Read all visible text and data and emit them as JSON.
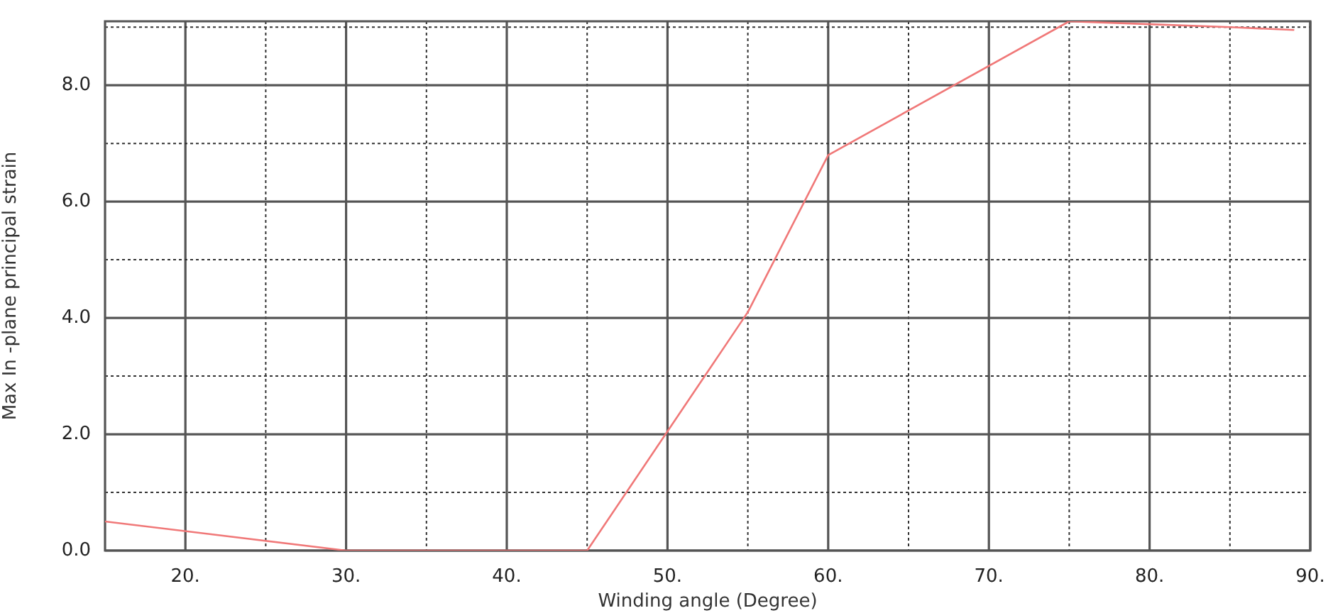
{
  "chart_data": {
    "type": "line",
    "xlabel": "Winding angle (Degree)",
    "ylabel": "Max In -plane principal strain",
    "x": [
      15,
      30,
      45,
      55,
      60,
      75,
      80,
      85,
      89
    ],
    "series": [
      {
        "color": "#f07878",
        "values": [
          0.5,
          0,
          0,
          4.1,
          6.8,
          9.1,
          9.05,
          9.0,
          8.95
        ]
      }
    ],
    "xlim": [
      15,
      90
    ],
    "xticks": [
      {
        "value": 15,
        "label": null
      },
      {
        "value": 20,
        "label": "20."
      },
      {
        "value": 25,
        "label": null
      },
      {
        "value": 30,
        "label": "30."
      },
      {
        "value": 35,
        "label": null
      },
      {
        "value": 40,
        "label": "40."
      },
      {
        "value": 45,
        "label": null
      },
      {
        "value": 50,
        "label": "50."
      },
      {
        "value": 55,
        "label": null
      },
      {
        "value": 60,
        "label": "60."
      },
      {
        "value": 65,
        "label": null
      },
      {
        "value": 70,
        "label": "70."
      },
      {
        "value": 75,
        "label": null
      },
      {
        "value": 80,
        "label": "80."
      },
      {
        "value": 85,
        "label": null
      },
      {
        "value": 90,
        "label": "90."
      }
    ],
    "ylim": [
      0,
      9.1
    ],
    "yticks": [
      {
        "value": 0,
        "label": "0.0"
      },
      {
        "value": 1,
        "label": null
      },
      {
        "value": 2,
        "label": "2.0"
      },
      {
        "value": 3,
        "label": null
      },
      {
        "value": 4,
        "label": "4.0"
      },
      {
        "value": 5,
        "label": null
      },
      {
        "value": 6,
        "label": "6.0"
      },
      {
        "value": 7,
        "label": null
      },
      {
        "value": 8,
        "label": "8.0"
      },
      {
        "value": 9,
        "label": null
      }
    ],
    "grid": true,
    "legend": false,
    "marker": "none",
    "line_style": "solid"
  }
}
